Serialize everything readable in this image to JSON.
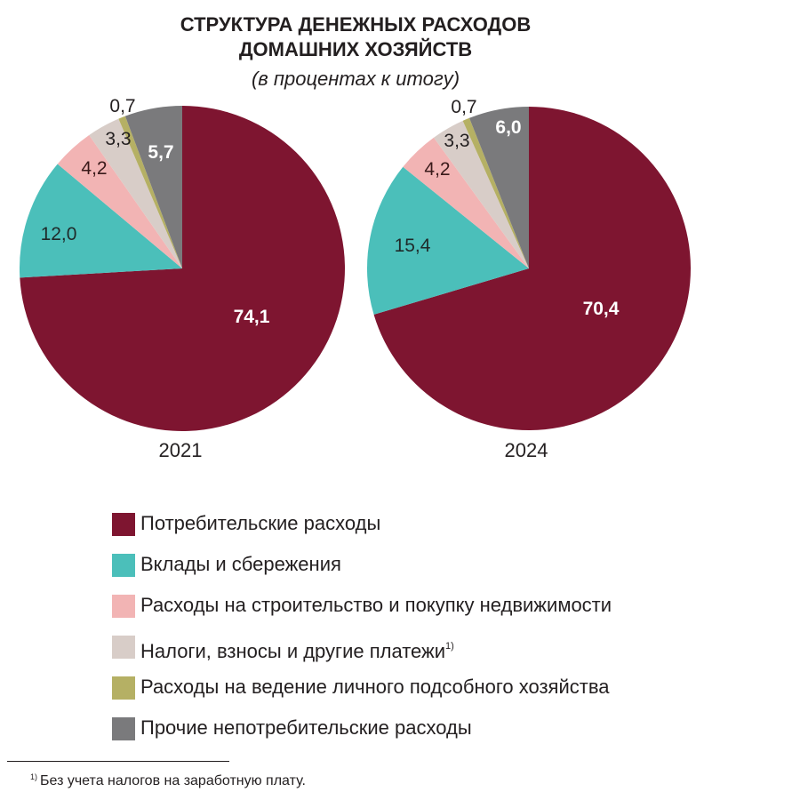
{
  "header": {
    "title_line1": "СТРУКТУРА ДЕНЕЖНЫХ РАСХОДОВ",
    "title_line2": "ДОМАШНИХ ХОЗЯЙСТВ",
    "subtitle": "(в процентах к итогу)"
  },
  "legend": {
    "items": [
      {
        "label": "Потребительские расходы",
        "color": "#7e1530",
        "note": ""
      },
      {
        "label": "Вклады и сбережения",
        "color": "#4bbfba",
        "note": ""
      },
      {
        "label": "Расходы на строительство и покупку недвижимости",
        "color": "#f2b4b4",
        "note": ""
      },
      {
        "label": "Налоги, взносы и другие платежи",
        "color": "#d8cdc8",
        "note": "1)"
      },
      {
        "label": "Расходы на ведение личного подсобного хозяйства",
        "color": "#b5b064",
        "note": ""
      },
      {
        "label": "Прочие непотребительские расходы",
        "color": "#7a7a7c",
        "note": ""
      }
    ]
  },
  "footnote": {
    "marker": "1)",
    "text": "Без учета налогов на заработную плату."
  },
  "chart_data": [
    {
      "type": "pie",
      "title": "СТРУКТУРА ДЕНЕЖНЫХ РАСХОДОВ ДОМАШНИХ ХОЗЯЙСТВ",
      "subtitle": "(в процентах к итогу)",
      "xlabel": "2021",
      "categories": [
        "Потребительские расходы",
        "Вклады и сбережения",
        "Расходы на строительство и покупку недвижимости",
        "Налоги, взносы и другие платежи",
        "Расходы на ведение личного подсобного хозяйства",
        "Прочие непотребительские расходы"
      ],
      "values": [
        74.1,
        12.0,
        4.2,
        3.3,
        0.7,
        5.7
      ],
      "labels": [
        "74,1",
        "12,0",
        "4,2",
        "3,3",
        "0,7",
        "5,7"
      ],
      "colors": [
        "#7e1530",
        "#4bbfba",
        "#f2b4b4",
        "#d8cdc8",
        "#b5b064",
        "#7a7a7c"
      ],
      "start_angle": "12 o'clock, clockwise",
      "legend_position": "bottom"
    },
    {
      "type": "pie",
      "title": "СТРУКТУРА ДЕНЕЖНЫХ РАСХОДОВ ДОМАШНИХ ХОЗЯЙСТВ",
      "subtitle": "(в процентах к итогу)",
      "xlabel": "2024",
      "categories": [
        "Потребительские расходы",
        "Вклады и сбережения",
        "Расходы на строительство и покупку недвижимости",
        "Налоги, взносы и другие платежи",
        "Расходы на ведение личного подсобного хозяйства",
        "Прочие непотребительские расходы"
      ],
      "values": [
        70.4,
        15.4,
        4.2,
        3.3,
        0.7,
        6.0
      ],
      "labels": [
        "70,4",
        "15,4",
        "4,2",
        "3,3",
        "0,7",
        "6,0"
      ],
      "colors": [
        "#7e1530",
        "#4bbfba",
        "#f2b4b4",
        "#d8cdc8",
        "#b5b064",
        "#7a7a7c"
      ],
      "start_angle": "12 o'clock, clockwise",
      "legend_position": "bottom"
    }
  ]
}
